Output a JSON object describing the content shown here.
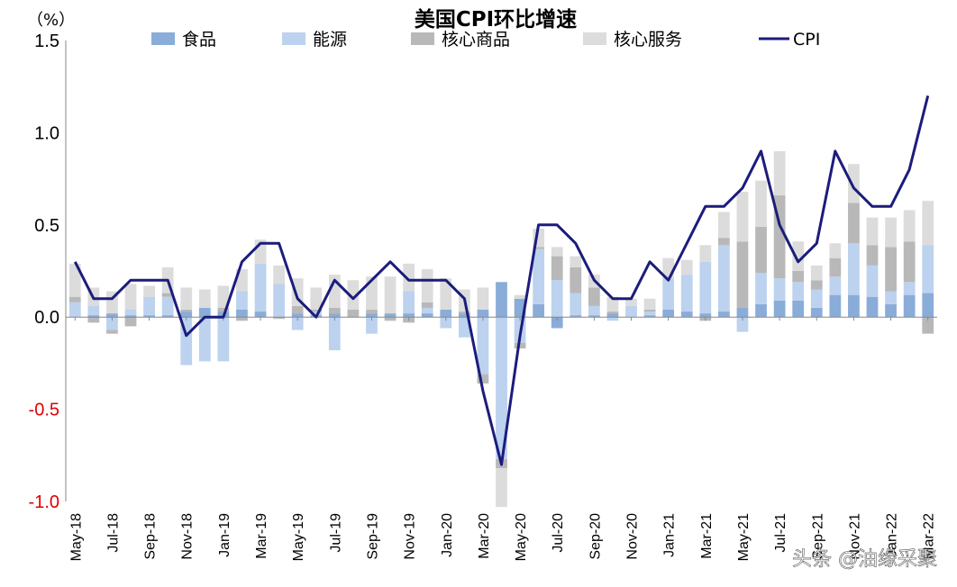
{
  "chart_data": {
    "type": "bar",
    "stacked": true,
    "title": "美国CPI环比增速",
    "unit": "（%）",
    "ylim": [
      -1.0,
      1.5
    ],
    "yticks": [
      "1.5",
      "1.0",
      "0.5",
      "0.0",
      "-0.5",
      "-1.0"
    ],
    "ytick_values": [
      1.5,
      1.0,
      0.5,
      0.0,
      -0.5,
      -1.0
    ],
    "grid": false,
    "legend_position": "top",
    "x": [
      "May-18",
      "Jun-18",
      "Jul-18",
      "Aug-18",
      "Sep-18",
      "Oct-18",
      "Nov-18",
      "Dec-18",
      "Jan-19",
      "Feb-19",
      "Mar-19",
      "Apr-19",
      "May-19",
      "Jun-19",
      "Jul-19",
      "Aug-19",
      "Sep-19",
      "Oct-19",
      "Nov-19",
      "Dec-19",
      "Jan-20",
      "Feb-20",
      "Mar-20",
      "Apr-20",
      "May-20",
      "Jun-20",
      "Jul-20",
      "Aug-20",
      "Sep-20",
      "Oct-20",
      "Nov-20",
      "Dec-20",
      "Jan-21",
      "Feb-21",
      "Mar-21",
      "Apr-21",
      "May-21",
      "Jun-21",
      "Jul-21",
      "Aug-21",
      "Sep-21",
      "Oct-21",
      "Nov-21",
      "Dec-21",
      "Jan-22",
      "Feb-22",
      "Mar-22"
    ],
    "x_tick_labels": [
      "May-18",
      "Jul-18",
      "Sep-18",
      "Nov-18",
      "Jan-19",
      "Mar-19",
      "May-19",
      "Jul-19",
      "Sep-19",
      "Nov-19",
      "Jan-20",
      "Mar-20",
      "May-20",
      "Jul-20",
      "Sep-20",
      "Nov-20",
      "Jan-21",
      "Mar-21",
      "May-21",
      "Jul-21",
      "Sep-21",
      "Nov-21",
      "Jan-22",
      "Mar-22"
    ],
    "series": [
      {
        "name": "食品",
        "kind": "bar",
        "color": "#8aacd9",
        "values": [
          0.0,
          0.01,
          0.02,
          0.01,
          0.01,
          0.01,
          0.03,
          0.05,
          0.03,
          0.04,
          0.03,
          0.0,
          0.02,
          0.01,
          0.02,
          0.0,
          0.02,
          0.02,
          0.02,
          0.02,
          0.04,
          0.02,
          0.04,
          0.19,
          0.1,
          0.07,
          -0.06,
          0.01,
          0.01,
          0.02,
          0.0,
          0.01,
          0.04,
          0.03,
          0.02,
          0.03,
          0.05,
          0.07,
          0.09,
          0.09,
          0.05,
          0.12,
          0.12,
          0.11,
          0.07,
          0.12,
          0.13
        ]
      },
      {
        "name": "能源",
        "kind": "bar",
        "color": "#bcd2ee",
        "values": [
          0.08,
          0.05,
          -0.07,
          0.03,
          0.1,
          0.1,
          -0.26,
          -0.24,
          -0.24,
          0.1,
          0.26,
          0.18,
          -0.07,
          0.02,
          -0.18,
          0.0,
          -0.09,
          0.0,
          0.12,
          0.03,
          -0.06,
          -0.11,
          -0.31,
          -0.77,
          -0.14,
          0.3,
          0.2,
          0.12,
          0.05,
          -0.02,
          0.06,
          0.02,
          0.17,
          0.2,
          0.28,
          0.36,
          -0.08,
          0.17,
          0.12,
          0.1,
          0.1,
          0.1,
          0.28,
          0.17,
          0.07,
          0.07,
          0.26
        ]
      },
      {
        "name": "核心商品",
        "kind": "bar",
        "color": "#b8b8b8",
        "values": [
          0.03,
          -0.03,
          -0.02,
          -0.05,
          0.0,
          0.02,
          0.01,
          0.0,
          0.02,
          -0.02,
          0.0,
          -0.01,
          0.04,
          0.01,
          0.03,
          0.04,
          0.02,
          -0.02,
          -0.03,
          0.03,
          0.0,
          0.01,
          -0.05,
          -0.05,
          -0.03,
          0.01,
          0.13,
          0.14,
          0.1,
          0.01,
          0.0,
          0.01,
          0.0,
          0.0,
          -0.02,
          0.04,
          0.36,
          0.25,
          0.45,
          0.06,
          0.05,
          0.1,
          0.22,
          0.11,
          0.24,
          0.22,
          -0.09
        ]
      },
      {
        "name": "核心服务",
        "kind": "bar",
        "color": "#dcdcdc",
        "values": [
          0.18,
          0.1,
          0.12,
          0.14,
          0.06,
          0.14,
          0.12,
          0.1,
          0.12,
          0.12,
          0.13,
          0.1,
          0.15,
          0.12,
          0.18,
          0.16,
          0.18,
          0.2,
          0.15,
          0.18,
          0.17,
          0.12,
          0.12,
          -0.21,
          0.02,
          0.1,
          0.05,
          0.06,
          0.07,
          0.08,
          0.04,
          0.06,
          0.11,
          0.08,
          0.09,
          0.14,
          0.27,
          0.25,
          0.24,
          0.16,
          0.08,
          0.08,
          0.21,
          0.15,
          0.16,
          0.17,
          0.24
        ]
      },
      {
        "name": "CPI",
        "kind": "line",
        "color": "#1c1c7c",
        "values": [
          0.3,
          0.1,
          0.1,
          0.2,
          0.2,
          0.2,
          -0.1,
          0.0,
          0.0,
          0.3,
          0.4,
          0.4,
          0.1,
          0.0,
          0.2,
          0.1,
          0.2,
          0.3,
          0.2,
          0.2,
          0.2,
          0.1,
          -0.4,
          -0.8,
          -0.1,
          0.5,
          0.5,
          0.4,
          0.2,
          0.1,
          0.1,
          0.3,
          0.2,
          0.4,
          0.6,
          0.6,
          0.7,
          0.9,
          0.5,
          0.3,
          0.4,
          0.9,
          0.7,
          0.6,
          0.6,
          0.8,
          1.2
        ]
      }
    ]
  },
  "watermark": "头条 @油缘采聚"
}
